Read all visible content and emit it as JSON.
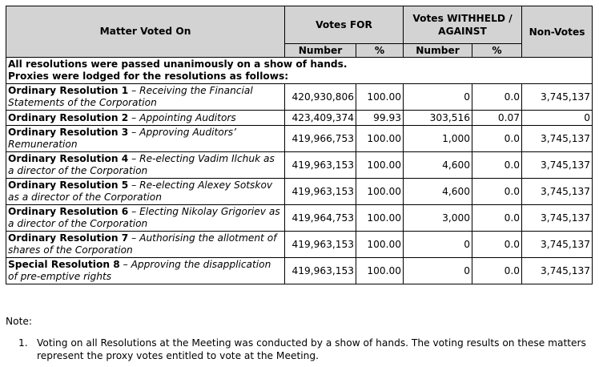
{
  "header": {
    "matter": "Matter Voted On",
    "votes_for": "Votes FOR",
    "votes_withheld": "Votes WITHHELD / AGAINST",
    "non_votes": "Non-Votes",
    "number": "Number",
    "percent": "%"
  },
  "intro": {
    "line1": "All resolutions were passed unanimously on a show of hands.",
    "line2": "Proxies were lodged for the resolutions as follows:"
  },
  "resolutions": [
    {
      "title": "Ordinary Resolution 1",
      "desc": "Receiving the Financial Statements of the Corporation",
      "for_number": "420,930,806",
      "for_pct": "100.00",
      "against_number": "0",
      "against_pct": "0.0",
      "non_votes": "3,745,137"
    },
    {
      "title": "Ordinary Resolution 2",
      "desc": "Appointing Auditors",
      "for_number": "423,409,374",
      "for_pct": "99.93",
      "against_number": "303,516",
      "against_pct": "0.07",
      "non_votes": "0"
    },
    {
      "title": "Ordinary Resolution 3",
      "desc": "Approving Auditors’ Remuneration",
      "for_number": "419,966,753",
      "for_pct": "100.00",
      "against_number": "1,000",
      "against_pct": "0.0",
      "non_votes": "3,745,137"
    },
    {
      "title": "Ordinary Resolution 4",
      "desc": "Re-electing Vadim Ilchuk as a director of the Corporation",
      "for_number": "419,963,153",
      "for_pct": "100.00",
      "against_number": "4,600",
      "against_pct": "0.0",
      "non_votes": "3,745,137"
    },
    {
      "title": "Ordinary Resolution 5",
      "desc": "Re-electing Alexey Sotskov as a director of the Corporation",
      "for_number": "419,963,153",
      "for_pct": "100.00",
      "against_number": "4,600",
      "against_pct": "0.0",
      "non_votes": "3,745,137"
    },
    {
      "title": "Ordinary Resolution 6",
      "desc": "Electing Nikolay Grigoriev as a director of the Corporation",
      "for_number": "419,964,753",
      "for_pct": "100.00",
      "against_number": "3,000",
      "against_pct": "0.0",
      "non_votes": "3,745,137"
    },
    {
      "title": "Ordinary Resolution 7",
      "desc": "Authorising the allotment of shares of the Corporation",
      "for_number": "419,963,153",
      "for_pct": "100.00",
      "against_number": "0",
      "against_pct": "0.0",
      "non_votes": "3,745,137"
    },
    {
      "title": "Special Resolution 8",
      "desc": "Approving the disapplication of pre-emptive rights",
      "for_number": "419,963,153",
      "for_pct": "100.00",
      "against_number": "0",
      "against_pct": "0.0",
      "non_votes": "3,745,137"
    }
  ],
  "separator": "–",
  "note": {
    "label": "Note:",
    "items": [
      {
        "num": "1.",
        "text": "Voting on all Resolutions at the Meeting was conducted by a show of hands. The voting results on these matters represent the proxy votes entitled to vote at the Meeting."
      }
    ]
  }
}
